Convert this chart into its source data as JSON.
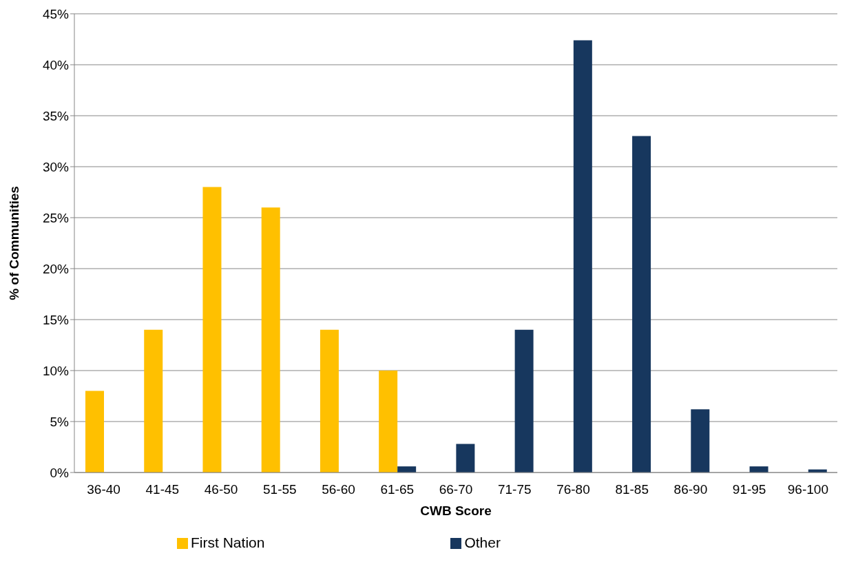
{
  "chart_data": {
    "type": "bar",
    "xlabel": "CWB Score",
    "ylabel": "% of Communities",
    "categories": [
      "36-40",
      "41-45",
      "46-50",
      "51-55",
      "56-60",
      "61-65",
      "66-70",
      "71-75",
      "76-80",
      "81-85",
      "86-90",
      "91-95",
      "96-100"
    ],
    "series": [
      {
        "name": "First Nation",
        "color": "#ffc000",
        "values": [
          8,
          14,
          28,
          26,
          14,
          10,
          null,
          null,
          null,
          null,
          null,
          null,
          null
        ]
      },
      {
        "name": "Other",
        "color": "#17375e",
        "values": [
          null,
          null,
          null,
          null,
          null,
          0.6,
          2.8,
          14,
          42.4,
          33,
          6.2,
          0.6,
          0.3
        ]
      }
    ],
    "ylim": [
      0,
      45
    ],
    "yticks": [
      {
        "value": 0,
        "label": "0%"
      },
      {
        "value": 5,
        "label": "5%"
      },
      {
        "value": 10,
        "label": "10%"
      },
      {
        "value": 15,
        "label": "15%"
      },
      {
        "value": 20,
        "label": "20%"
      },
      {
        "value": 25,
        "label": "25%"
      },
      {
        "value": 30,
        "label": "30%"
      },
      {
        "value": 35,
        "label": "35%"
      },
      {
        "value": 40,
        "label": "40%"
      },
      {
        "value": 45,
        "label": "45%"
      }
    ],
    "grid": "y",
    "legend": "bottom"
  }
}
